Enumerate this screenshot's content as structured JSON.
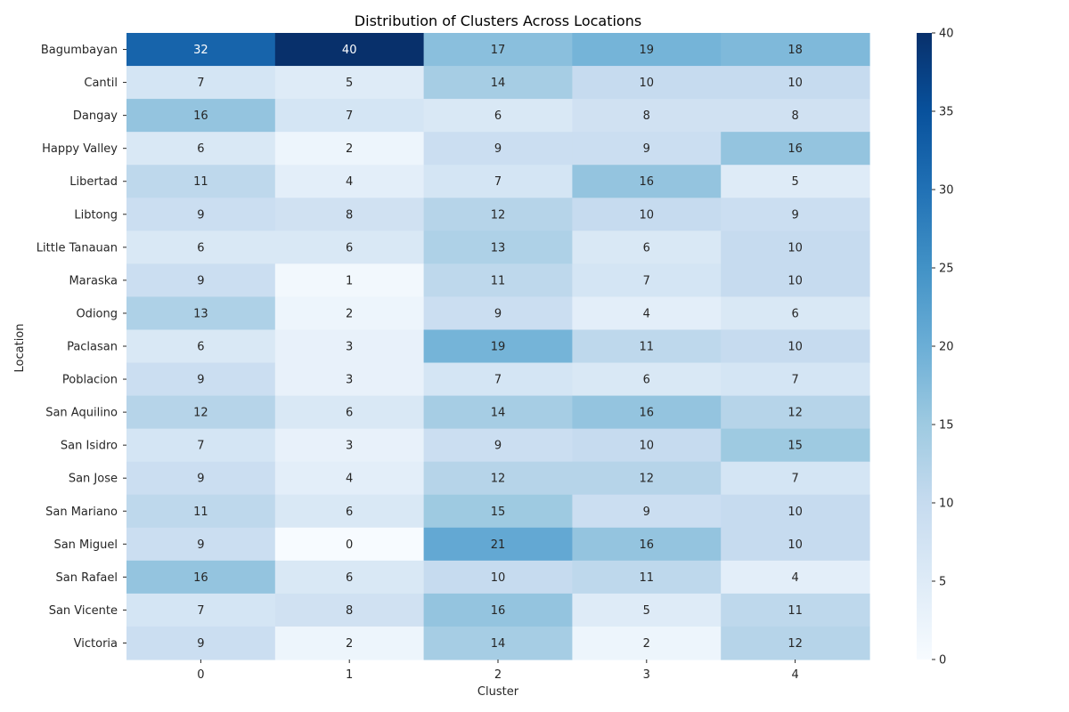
{
  "chart_data": {
    "type": "heatmap",
    "title": "Distribution of Clusters Across Locations",
    "xlabel": "Cluster",
    "ylabel": "Location",
    "x_categories": [
      "0",
      "1",
      "2",
      "3",
      "4"
    ],
    "y_categories": [
      "Bagumbayan",
      "Cantil",
      "Dangay",
      "Happy Valley",
      "Libertad",
      "Libtong",
      "Little Tanauan",
      "Maraska",
      "Odiong",
      "Paclasan",
      "Poblacion",
      "San Aquilino",
      "San Isidro",
      "San Jose",
      "San Mariano",
      "San Miguel",
      "San Rafael",
      "San Vicente",
      "Victoria"
    ],
    "values": [
      [
        32,
        40,
        17,
        19,
        18
      ],
      [
        7,
        5,
        14,
        10,
        10
      ],
      [
        16,
        7,
        6,
        8,
        8
      ],
      [
        6,
        2,
        9,
        9,
        16
      ],
      [
        11,
        4,
        7,
        16,
        5
      ],
      [
        9,
        8,
        12,
        10,
        9
      ],
      [
        6,
        6,
        13,
        6,
        10
      ],
      [
        9,
        1,
        11,
        7,
        10
      ],
      [
        13,
        2,
        9,
        4,
        6
      ],
      [
        6,
        3,
        19,
        11,
        10
      ],
      [
        9,
        3,
        7,
        6,
        7
      ],
      [
        12,
        6,
        14,
        16,
        12
      ],
      [
        7,
        3,
        9,
        10,
        15
      ],
      [
        9,
        4,
        12,
        12,
        7
      ],
      [
        11,
        6,
        15,
        9,
        10
      ],
      [
        9,
        0,
        21,
        16,
        10
      ],
      [
        16,
        6,
        10,
        11,
        4
      ],
      [
        7,
        8,
        16,
        5,
        11
      ],
      [
        9,
        2,
        14,
        2,
        12
      ]
    ],
    "colorscale": "Blues",
    "vmin": 0,
    "vmax": 40,
    "colorbar_ticks": [
      0,
      5,
      10,
      15,
      20,
      25,
      30,
      35,
      40
    ],
    "annotations": true,
    "grid": false
  }
}
